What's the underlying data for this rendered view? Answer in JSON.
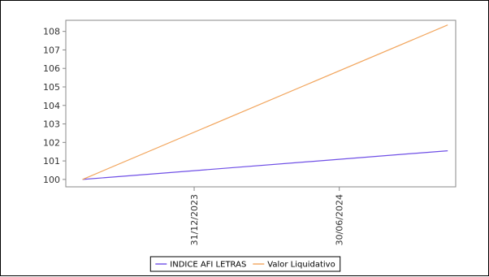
{
  "chart_data": {
    "type": "line",
    "title": "",
    "xlabel": "",
    "ylabel": "",
    "x_ticks": [
      "31/12/2023",
      "30/06/2024"
    ],
    "y_ticks": [
      "100",
      "101",
      "102",
      "103",
      "104",
      "105",
      "106",
      "107",
      "108"
    ],
    "ylim": [
      99.6,
      108.6
    ],
    "xlim": [
      "2023-07-23",
      "2024-11-23"
    ],
    "grid": false,
    "legend": "bottom-center",
    "series": [
      {
        "name": "INDICE AFI LETRAS",
        "color": "#6f4fe6",
        "points": [
          [
            "2023-08-13",
            100.0
          ],
          [
            "2024-11-13",
            101.55
          ]
        ]
      },
      {
        "name": "Valor Liquidativo",
        "color": "#f2a65e",
        "points": [
          [
            "2023-08-13",
            100.0
          ],
          [
            "2024-11-13",
            108.35
          ]
        ]
      }
    ]
  }
}
